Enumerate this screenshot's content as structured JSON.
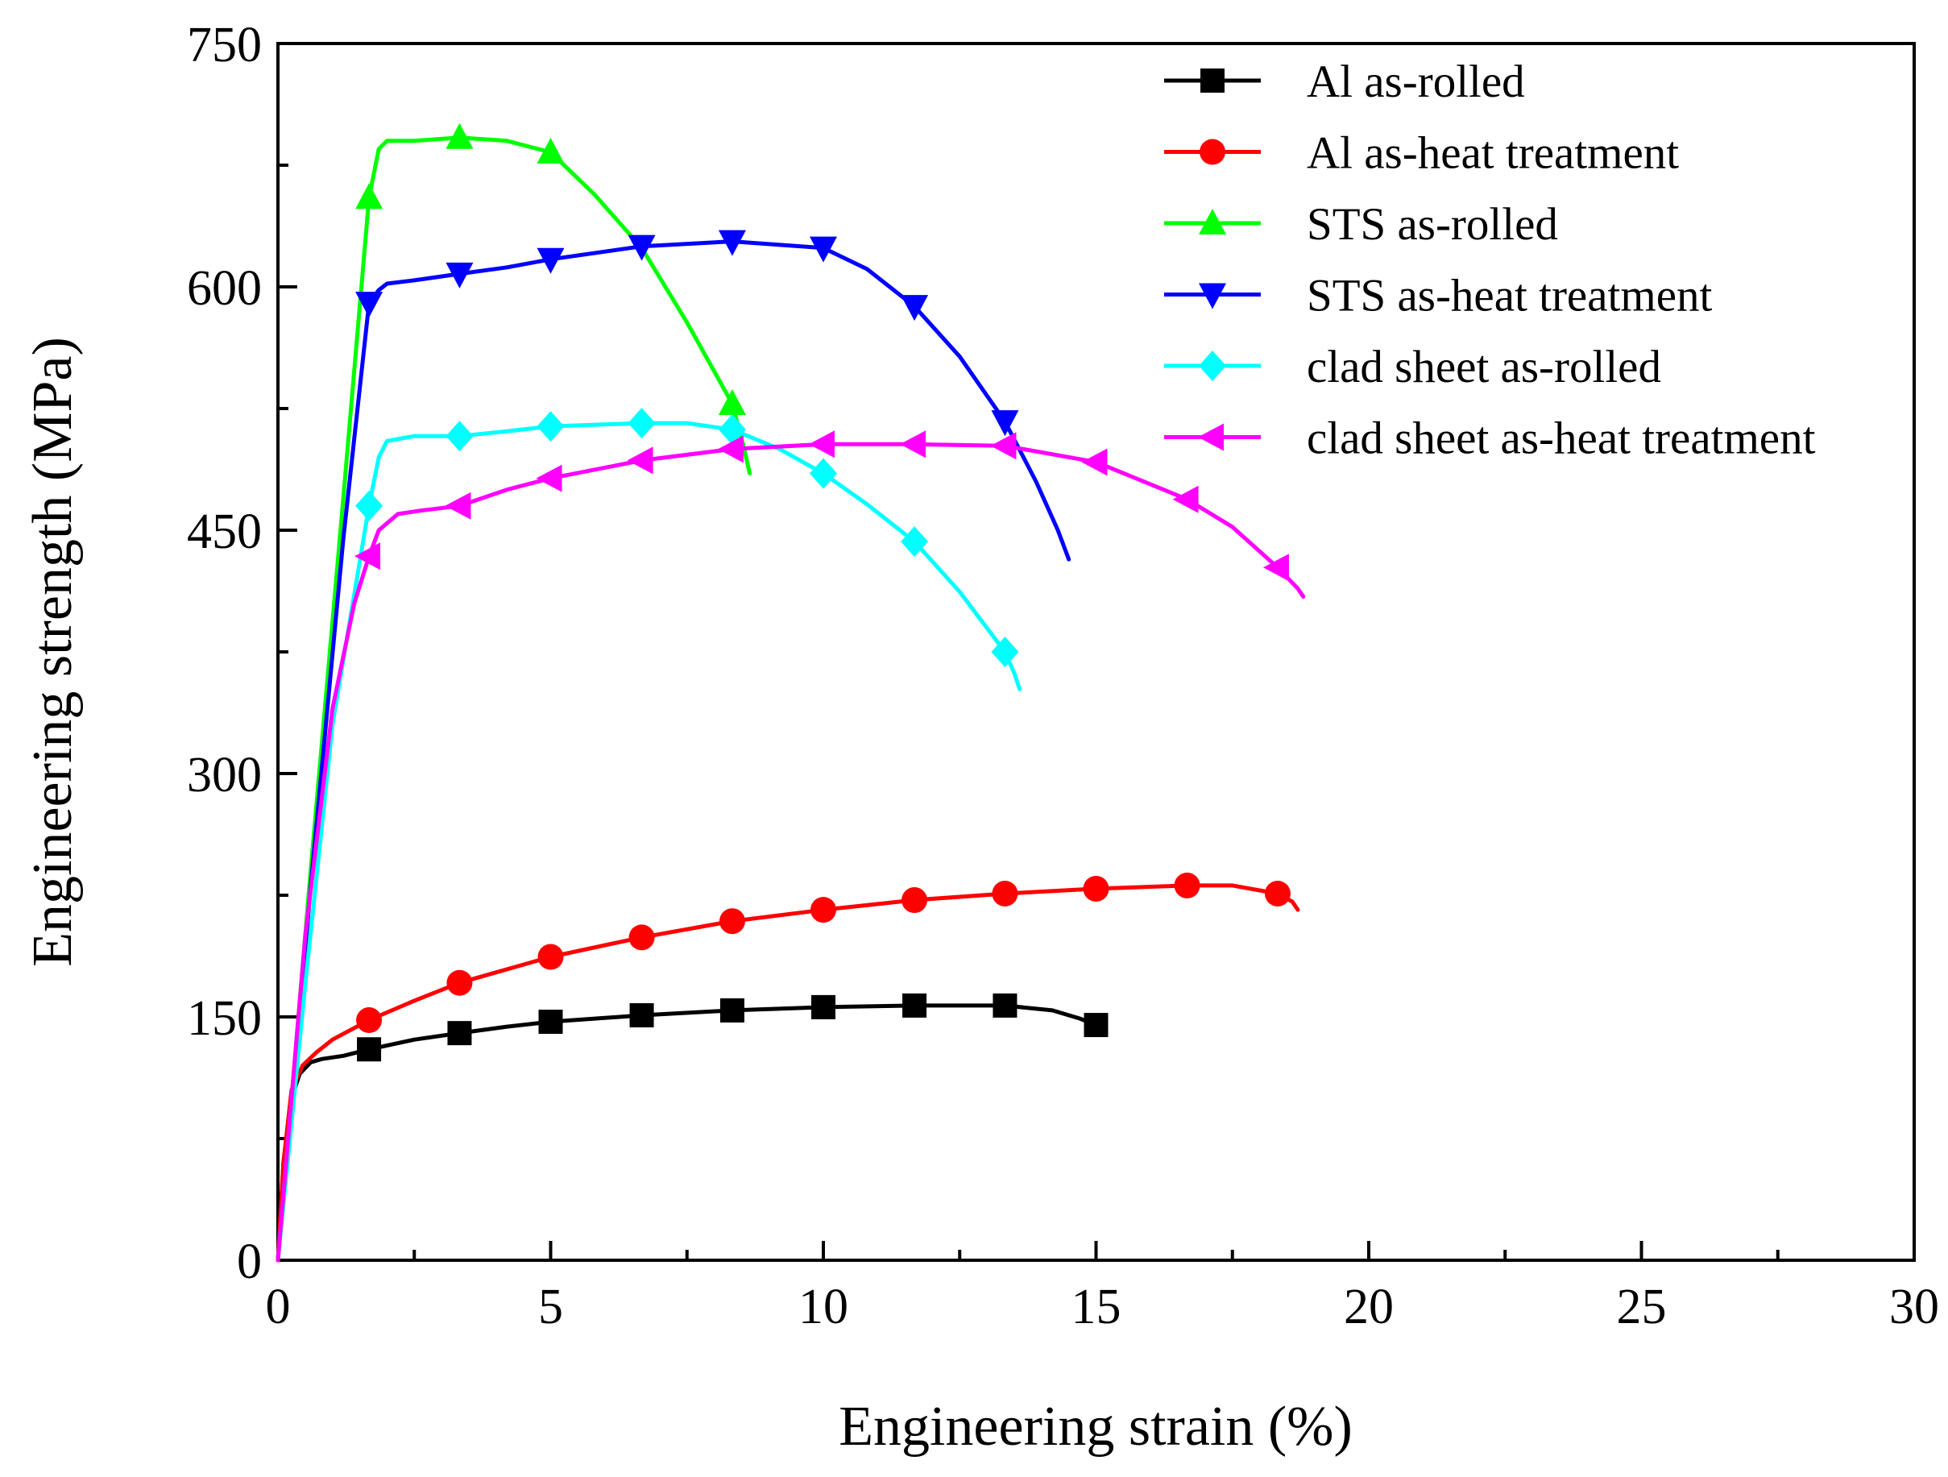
{
  "chart_data": {
    "type": "line",
    "title": "",
    "xlabel": "Engineering strain (%)",
    "ylabel": "Engineering strength (MPa)",
    "xlim": [
      0,
      30
    ],
    "ylim": [
      0,
      750
    ],
    "xticks": [
      0,
      5,
      10,
      15,
      20,
      25,
      30
    ],
    "yticks": [
      0,
      150,
      300,
      450,
      600,
      750
    ],
    "grid": false,
    "legend_position": "top-right",
    "series": [
      {
        "name": "Al as-rolled",
        "color": "#000000",
        "marker": "square",
        "x": [
          0,
          0.1,
          0.25,
          0.4,
          0.6,
          0.8,
          1.2,
          1.67,
          2.5,
          3.33,
          4.2,
          5.0,
          6.67,
          8.33,
          10.0,
          11.67,
          13.33,
          14.2,
          14.7,
          15.0,
          15.15
        ],
        "y": [
          0,
          60,
          100,
          115,
          122,
          124,
          126,
          130,
          136,
          140,
          144,
          147,
          151,
          154,
          156,
          157,
          157,
          154,
          149,
          145,
          144
        ],
        "marker_x": [
          1.67,
          3.33,
          5.0,
          6.67,
          8.33,
          10.0,
          11.67,
          13.33,
          15.0
        ],
        "marker_y": [
          130,
          140,
          147,
          151,
          154,
          156,
          157,
          157,
          145
        ]
      },
      {
        "name": "Al as-heat treatment",
        "color": "#ff0000",
        "marker": "circle",
        "x": [
          0,
          0.1,
          0.25,
          0.45,
          0.7,
          1.0,
          1.67,
          2.5,
          3.33,
          5.0,
          6.67,
          8.33,
          10.0,
          11.67,
          13.33,
          15.0,
          16.67,
          17.5,
          18.33,
          18.6,
          18.7
        ],
        "y": [
          0,
          60,
          105,
          120,
          128,
          136,
          148,
          160,
          171,
          187,
          199,
          209,
          216,
          222,
          226,
          229,
          231,
          231,
          226,
          221,
          216
        ],
        "marker_x": [
          1.67,
          3.33,
          5.0,
          6.67,
          8.33,
          10.0,
          11.67,
          13.33,
          15.0,
          16.67,
          18.33
        ],
        "marker_y": [
          148,
          171,
          187,
          199,
          209,
          216,
          222,
          226,
          229,
          231,
          226
        ]
      },
      {
        "name": "STS as-rolled",
        "color": "#00ff00",
        "marker": "triangle-up",
        "x": [
          0,
          0.6,
          1.2,
          1.67,
          1.85,
          2.0,
          2.5,
          3.33,
          4.2,
          5.0,
          5.8,
          6.67,
          7.5,
          8.33,
          8.55,
          8.65
        ],
        "y": [
          0,
          240,
          470,
          655,
          685,
          690,
          690,
          692,
          690,
          683,
          657,
          624,
          578,
          528,
          500,
          485
        ],
        "marker_x": [
          1.67,
          3.33,
          5.0,
          8.33
        ],
        "marker_y": [
          655,
          692,
          683,
          528
        ]
      },
      {
        "name": "STS as-heat treatment",
        "color": "#0000ff",
        "marker": "triangle-down",
        "x": [
          0,
          0.6,
          1.2,
          1.67,
          1.85,
          2.0,
          2.5,
          3.33,
          4.2,
          5.0,
          6.67,
          8.33,
          10.0,
          10.8,
          11.67,
          12.5,
          13.33,
          13.9,
          14.3,
          14.5
        ],
        "y": [
          0,
          230,
          445,
          590,
          598,
          602,
          604,
          608,
          612,
          617,
          625,
          628,
          624,
          611,
          588,
          557,
          517,
          480,
          450,
          432
        ],
        "marker_x": [
          1.67,
          3.33,
          5.0,
          6.67,
          8.33,
          10.0,
          11.67,
          13.33
        ],
        "marker_y": [
          590,
          608,
          617,
          625,
          628,
          624,
          588,
          517
        ]
      },
      {
        "name": "clad sheet as-rolled",
        "color": "#00ffff",
        "marker": "diamond",
        "x": [
          0,
          0.5,
          1.0,
          1.67,
          1.85,
          2.0,
          2.5,
          3.33,
          4.2,
          5.0,
          6.67,
          7.5,
          8.33,
          9.2,
          10.0,
          10.8,
          11.67,
          12.5,
          13.33,
          13.5,
          13.6
        ],
        "y": [
          0,
          170,
          330,
          465,
          495,
          505,
          508,
          508,
          511,
          514,
          516,
          516,
          512,
          500,
          485,
          466,
          443,
          412,
          375,
          362,
          352
        ],
        "marker_x": [
          1.67,
          3.33,
          5.0,
          6.67,
          8.33,
          10.0,
          11.67,
          13.33
        ],
        "marker_y": [
          465,
          508,
          514,
          516,
          512,
          485,
          443,
          375
        ]
      },
      {
        "name": "clad sheet as-heat treatment",
        "color": "#ff00ff",
        "marker": "triangle-left",
        "x": [
          0,
          0.5,
          1.0,
          1.4,
          1.67,
          1.85,
          2.2,
          2.6,
          3.33,
          4.2,
          5.0,
          6.67,
          8.33,
          10.0,
          11.67,
          13.33,
          15.0,
          16.67,
          17.5,
          18.33,
          18.7,
          18.8
        ],
        "y": [
          0,
          200,
          340,
          405,
          434,
          450,
          460,
          462,
          465,
          475,
          482,
          493,
          500,
          503,
          503,
          502,
          492,
          469,
          452,
          427,
          414,
          409
        ],
        "marker_x": [
          1.67,
          3.33,
          5.0,
          6.67,
          8.33,
          10.0,
          11.67,
          13.33,
          15.0,
          16.67,
          18.33
        ],
        "marker_y": [
          434,
          465,
          482,
          493,
          500,
          503,
          503,
          502,
          492,
          469,
          427
        ]
      }
    ]
  }
}
